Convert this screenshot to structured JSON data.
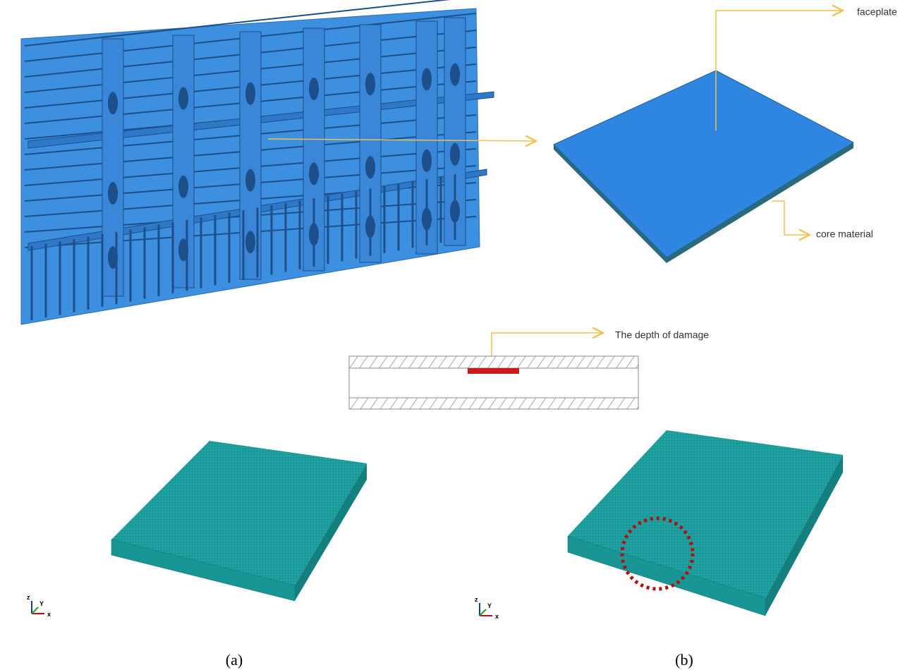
{
  "labels": {
    "faceplate": "faceplate",
    "core_material": "core material",
    "damage_depth": "The depth of damage"
  },
  "panels": [
    {
      "caption": "(a)",
      "triad": {
        "z": "z",
        "y": "Y",
        "x": "x"
      }
    },
    {
      "caption": "(b)",
      "triad": {
        "z": "z",
        "y": "Y",
        "x": "x"
      }
    }
  ]
}
